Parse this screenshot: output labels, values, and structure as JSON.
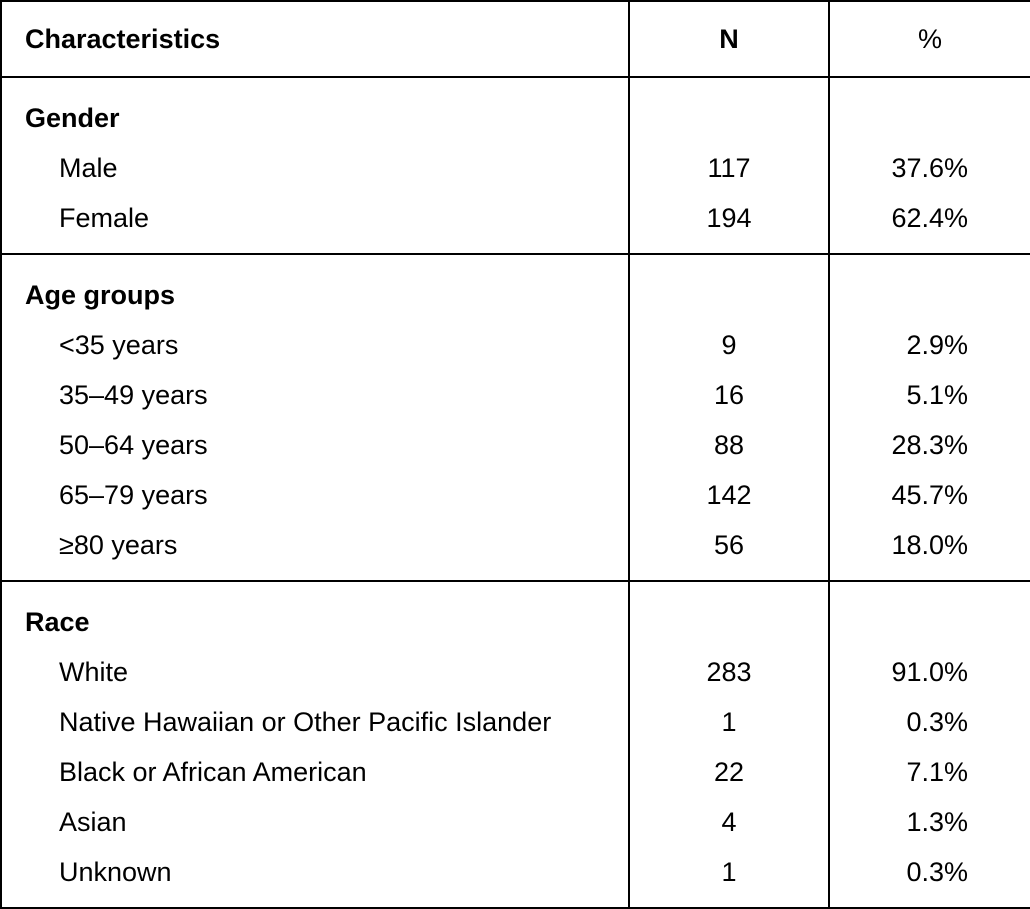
{
  "header": {
    "characteristics": "Characteristics",
    "n": "N",
    "percent": "%"
  },
  "groups": [
    {
      "title": "Gender",
      "rows": [
        {
          "label": "Male",
          "n": "117",
          "pct": "37.6%"
        },
        {
          "label": "Female",
          "n": "194",
          "pct": "62.4%"
        }
      ]
    },
    {
      "title": "Age groups",
      "rows": [
        {
          "label": "<35 years",
          "n": "9",
          "pct": "2.9%"
        },
        {
          "label": "35–49 years",
          "n": "16",
          "pct": "5.1%"
        },
        {
          "label": "50–64 years",
          "n": "88",
          "pct": "28.3%"
        },
        {
          "label": "65–79 years",
          "n": "142",
          "pct": "45.7%"
        },
        {
          "label": "≥80 years",
          "n": "56",
          "pct": "18.0%"
        }
      ]
    },
    {
      "title": "Race",
      "rows": [
        {
          "label": "White",
          "n": "283",
          "pct": "91.0%"
        },
        {
          "label": "Native Hawaiian or Other Pacific Islander",
          "n": "1",
          "pct": "0.3%"
        },
        {
          "label": "Black or African American",
          "n": "22",
          "pct": "7.1%"
        },
        {
          "label": "Asian",
          "n": "4",
          "pct": "1.3%"
        },
        {
          "label": "Unknown",
          "n": "1",
          "pct": "0.3%"
        }
      ]
    }
  ]
}
